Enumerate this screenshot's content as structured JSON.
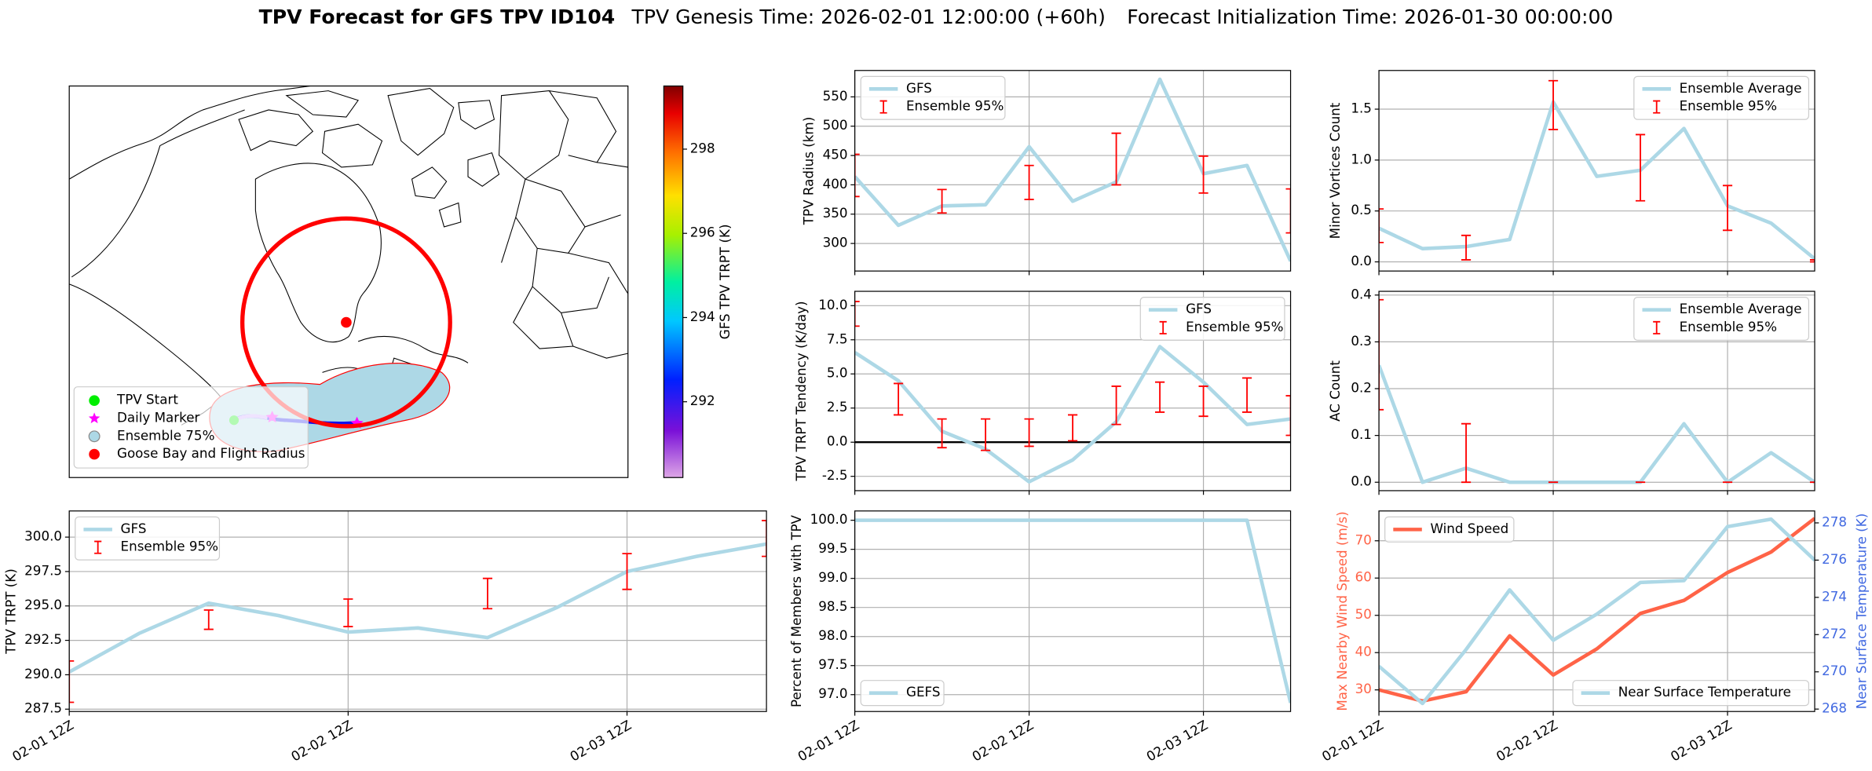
{
  "title": "TPV Forecast for GFS TPV ID104",
  "subtitles": [
    "TPV Genesis Time: 2026-02-01 12:00:00 (+60h)",
    "Forecast Initialization Time: 2026-01-30 00:00:00"
  ],
  "chart_data": [
    {
      "type": "map",
      "legend": [
        {
          "name": "TPV Start",
          "color": "#00ee00",
          "marker": "circle"
        },
        {
          "name": "Daily Marker",
          "color": "#ff00ff",
          "marker": "star"
        },
        {
          "name": "Ensemble 75%",
          "color": "#add8e6",
          "marker": "circle"
        },
        {
          "name": "Goose Bay and Flight Radius",
          "color": "#ff0000",
          "marker": "circle"
        }
      ],
      "colorbar": {
        "label": "GFS TPV TRPT (K)",
        "clim": [
          290.2,
          299.5
        ],
        "ticks": [
          292,
          294,
          296,
          298
        ]
      }
    },
    {
      "type": "line",
      "ylabel": "TPV Radius (km)",
      "x": [
        0,
        6,
        12,
        18,
        24,
        30,
        36,
        42,
        48,
        54,
        60
      ],
      "xlim": [
        0,
        60
      ],
      "xticks": [
        0,
        24,
        48
      ],
      "ylim": [
        253,
        595
      ],
      "yticks": [
        300,
        350,
        400,
        450,
        500,
        550
      ],
      "grid": true,
      "legend": "upper left",
      "series": [
        {
          "name": "GFS",
          "color": "#add8e6",
          "values": [
            414,
            331,
            364,
            366,
            465,
            372,
            405,
            580,
            419,
            433,
            270
          ]
        },
        {
          "name": "Ensemble 95%",
          "type": "errorbar",
          "color": "#ff0000",
          "low": [
            380,
            null,
            352,
            null,
            375,
            null,
            400,
            null,
            386,
            null,
            318
          ],
          "high": [
            452,
            null,
            392,
            null,
            433,
            null,
            488,
            null,
            449,
            null,
            393
          ]
        }
      ]
    },
    {
      "type": "line",
      "ylabel": "Minor Vortices Count",
      "x": [
        0,
        6,
        12,
        18,
        24,
        30,
        36,
        42,
        48,
        54,
        60
      ],
      "xlim": [
        0,
        60
      ],
      "xticks": [
        0,
        24,
        48
      ],
      "ylim": [
        -0.09,
        1.88
      ],
      "yticks": [
        {
          "value": 0,
          "label": "0.0"
        },
        0.5,
        {
          "value": 1,
          "label": "1.0"
        },
        1.5
      ],
      "grid": true,
      "legend": "upper right",
      "series": [
        {
          "name": "Ensemble Average",
          "color": "#add8e6",
          "values": [
            0.33,
            0.13,
            0.15,
            0.22,
            1.57,
            0.84,
            0.9,
            1.31,
            0.55,
            0.38,
            0.03
          ]
        },
        {
          "name": "Ensemble 95%",
          "type": "errorbar",
          "color": "#ff0000",
          "low": [
            0.19,
            null,
            0.02,
            null,
            1.3,
            null,
            0.6,
            null,
            0.31,
            null,
            0
          ],
          "high": [
            0.52,
            null,
            0.26,
            null,
            1.78,
            null,
            1.25,
            null,
            0.75,
            null,
            0.02
          ]
        }
      ]
    },
    {
      "type": "line",
      "ylabel": "TPV TRPT Tendency (K/day)",
      "x": [
        0,
        6,
        12,
        18,
        24,
        30,
        36,
        42,
        48,
        54,
        60
      ],
      "xlim": [
        0,
        60
      ],
      "xticks": [
        0,
        24,
        48
      ],
      "ylim": [
        -3.55,
        11.05
      ],
      "yticks": [
        -2.5,
        {
          "value": 0,
          "label": "0.0"
        },
        2.5,
        {
          "value": 5,
          "label": "5.0"
        },
        7.5,
        {
          "value": 10,
          "label": "10.0"
        }
      ],
      "grid": true,
      "legend": "upper right",
      "hline": 0,
      "series": [
        {
          "name": "GFS",
          "color": "#add8e6",
          "values": [
            6.57,
            4.5,
            0.8,
            -0.5,
            -2.9,
            -1.3,
            1.5,
            7.0,
            4.4,
            1.3,
            1.7
          ]
        },
        {
          "name": "Ensemble 95%",
          "type": "errorbar",
          "color": "#ff0000",
          "low": [
            8.5,
            2.0,
            -0.4,
            -0.6,
            -0.3,
            0.1,
            1.3,
            2.2,
            1.9,
            2.2,
            0.5
          ],
          "high": [
            10.3,
            4.3,
            1.7,
            1.7,
            1.7,
            2.0,
            4.1,
            4.4,
            4.1,
            4.7,
            3.4
          ]
        }
      ]
    },
    {
      "type": "line",
      "ylabel": "AC Count",
      "x": [
        0,
        6,
        12,
        18,
        24,
        30,
        36,
        42,
        48,
        54,
        60
      ],
      "xlim": [
        0,
        60
      ],
      "xticks": [
        0,
        24,
        48
      ],
      "ylim": [
        -0.018,
        0.408
      ],
      "yticks": [
        {
          "value": 0,
          "label": "0.0"
        },
        0.1,
        0.2,
        0.3,
        0.4
      ],
      "grid": true,
      "legend": "upper right",
      "series": [
        {
          "name": "Ensemble Average",
          "color": "#add8e6",
          "values": [
            0.25,
            0,
            0.03,
            0,
            0,
            0,
            0,
            0.125,
            0,
            0.063,
            0
          ]
        },
        {
          "name": "Ensemble 95%",
          "type": "errorbar",
          "color": "#ff0000",
          "low": [
            0.155,
            null,
            0,
            null,
            0,
            null,
            0,
            null,
            0,
            null,
            0
          ],
          "high": [
            0.39,
            null,
            0.125,
            null,
            0,
            null,
            0,
            null,
            0,
            null,
            0
          ]
        }
      ]
    },
    {
      "type": "line",
      "ylabel": "TPV TRPT (K)",
      "x": [
        0,
        6,
        12,
        18,
        24,
        30,
        36,
        42,
        48,
        54,
        60
      ],
      "xlim": [
        0,
        60
      ],
      "xticks": [
        {
          "value": 0,
          "label": "02-01 12Z"
        },
        {
          "value": 24,
          "label": "02-02 12Z"
        },
        {
          "value": 48,
          "label": "02-03 12Z"
        }
      ],
      "ylim": [
        287.33,
        301.9
      ],
      "yticks": [
        287.5,
        {
          "value": 290,
          "label": "290.0"
        },
        292.5,
        {
          "value": 295,
          "label": "295.0"
        },
        297.5,
        {
          "value": 300,
          "label": "300.0"
        }
      ],
      "grid": true,
      "legend": "upper left",
      "series": [
        {
          "name": "GFS",
          "color": "#add8e6",
          "values": [
            290.2,
            293.0,
            295.2,
            294.3,
            293.1,
            293.4,
            292.7,
            294.9,
            297.5,
            298.6,
            299.5
          ]
        },
        {
          "name": "Ensemble 95%",
          "type": "errorbar",
          "color": "#ff0000",
          "low": [
            288.0,
            null,
            293.3,
            null,
            293.5,
            null,
            294.8,
            null,
            296.2,
            null,
            298.6
          ],
          "high": [
            291.0,
            null,
            294.7,
            null,
            295.5,
            null,
            297.0,
            null,
            298.8,
            null,
            301.2
          ]
        }
      ]
    },
    {
      "type": "line",
      "ylabel": "Percent of Members with TPV",
      "x": [
        0,
        6,
        12,
        18,
        24,
        30,
        36,
        42,
        48,
        54,
        60
      ],
      "xlim": [
        0,
        60
      ],
      "xticks": [
        {
          "value": 0,
          "label": "02-01 12Z"
        },
        {
          "value": 24,
          "label": "02-02 12Z"
        },
        {
          "value": 48,
          "label": "02-03 12Z"
        }
      ],
      "ylim": [
        96.71,
        100.16
      ],
      "yticks": [
        {
          "value": 97,
          "label": "97.0"
        },
        97.5,
        {
          "value": 98,
          "label": "98.0"
        },
        98.5,
        {
          "value": 99,
          "label": "99.0"
        },
        99.5,
        {
          "value": 100,
          "label": "100.0"
        }
      ],
      "grid": true,
      "legend": "lower left",
      "series": [
        {
          "name": "GEFS",
          "color": "#add8e6",
          "values": [
            100,
            100,
            100,
            100,
            100,
            100,
            100,
            100,
            100,
            100,
            96.86
          ]
        }
      ]
    },
    {
      "type": "line",
      "ylabel": "Max Nearby Wind Speed (m/s)",
      "y2label": "Near Surface Temperature (K)",
      "ycolor": "#ff6347",
      "y2color": "#4169e1",
      "x": [
        0,
        6,
        12,
        18,
        24,
        30,
        36,
        42,
        48,
        54,
        60
      ],
      "xlim": [
        0,
        60
      ],
      "xticks": [
        {
          "value": 0,
          "label": "02-01 12Z"
        },
        {
          "value": 24,
          "label": "02-02 12Z"
        },
        {
          "value": 48,
          "label": "02-03 12Z"
        }
      ],
      "ylim": [
        24.2,
        78
      ],
      "yticks": [
        30,
        40,
        50,
        60,
        70
      ],
      "y2lim": [
        267.87,
        278.64
      ],
      "y2ticks": [
        268,
        270,
        272,
        274,
        276,
        278
      ],
      "grid": true,
      "legend": "upper left",
      "legend2": "lower right",
      "series": [
        {
          "name": "Wind Speed",
          "color": "#ff6347",
          "values": [
            30,
            27,
            29.5,
            44.5,
            34,
            41,
            50.5,
            54,
            61.5,
            67,
            76
          ]
        },
        {
          "name": "Near Surface Temperature",
          "color": "#add8e6",
          "axis": "y2",
          "values": [
            270.3,
            268.3,
            271.2,
            274.4,
            271.7,
            273.1,
            274.8,
            274.9,
            277.8,
            278.2,
            276.0
          ]
        }
      ]
    }
  ]
}
